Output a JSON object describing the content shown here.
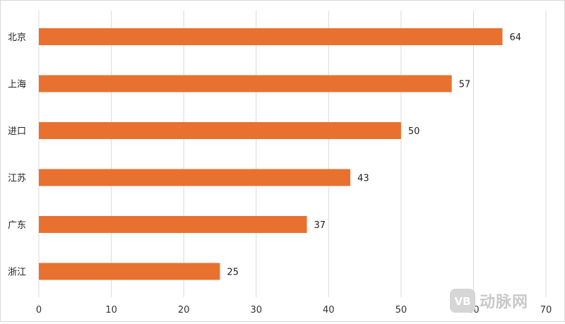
{
  "chart_data": {
    "type": "bar",
    "orientation": "horizontal",
    "categories": [
      "北京",
      "上海",
      "进口",
      "江苏",
      "广东",
      "浙江"
    ],
    "values": [
      64,
      57,
      50,
      43,
      37,
      25
    ],
    "x_ticks": [
      0,
      10,
      20,
      30,
      40,
      50,
      60,
      70
    ],
    "xlim": [
      0,
      70
    ],
    "title": "",
    "xlabel": "",
    "ylabel": "",
    "grid": "vertical",
    "legend": "none",
    "data_labels": true,
    "bar_color": "#E8712F",
    "grid_color": "#d9d9d9"
  },
  "watermark": {
    "badge": "VB",
    "text": "动脉网"
  }
}
